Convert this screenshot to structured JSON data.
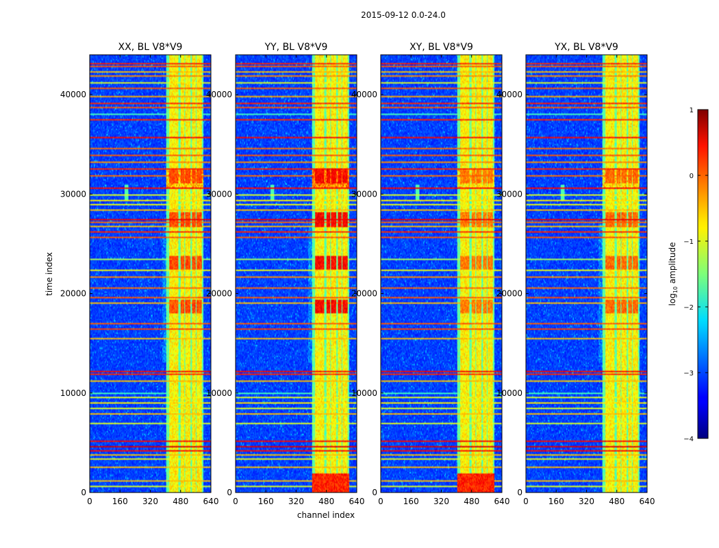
{
  "chart_data": {
    "type": "heatmap",
    "suptitle": "2015-09-12 0.0-24.0",
    "xlabel": "channel index",
    "ylabel": "time index",
    "xlim": [
      0,
      640
    ],
    "ylim": [
      0,
      44000
    ],
    "xticks": [
      0,
      160,
      320,
      480,
      640
    ],
    "yticks": [
      0,
      10000,
      20000,
      30000,
      40000
    ],
    "xtick_labels": [
      "0",
      "160",
      "320",
      "480",
      "640"
    ],
    "ytick_labels": [
      "0",
      "10000",
      "20000",
      "30000",
      "40000"
    ],
    "colormap": "jet",
    "colorbar": {
      "label": "log10 amplitude",
      "label_main": "log",
      "label_sub": "10",
      "label_tail": " amplitude",
      "range": [
        -4,
        1
      ],
      "ticks": [
        1,
        0,
        -1,
        -2,
        -3,
        -4
      ],
      "tick_labels": [
        "1",
        "0",
        "−1",
        "−2",
        "−3",
        "−4"
      ]
    },
    "panels": [
      {
        "title": "XX, BL V8*V9",
        "pol": "XX",
        "rfi_band_channels": [
          405,
          600
        ],
        "strong_level": 0.55,
        "bright_low_rows": false,
        "mid_glow": true
      },
      {
        "title": "YY, BL V8*V9",
        "pol": "YY",
        "rfi_band_channels": [
          405,
          600
        ],
        "strong_level": 0.62,
        "bright_low_rows": true,
        "mid_glow": true
      },
      {
        "title": "XY, BL V8*V9",
        "pol": "XY",
        "rfi_band_channels": [
          405,
          600
        ],
        "strong_level": 0.5,
        "bright_low_rows": true,
        "mid_glow": false
      },
      {
        "title": "YX, BL V8*V9",
        "pol": "YX",
        "rfi_band_channels": [
          405,
          600
        ],
        "strong_level": 0.52,
        "bright_low_rows": false,
        "mid_glow": true
      }
    ],
    "rfi_bright_sub_bands": [
      [
        420,
        470
      ],
      [
        480,
        500
      ],
      [
        505,
        535
      ],
      [
        540,
        560
      ],
      [
        565,
        595
      ]
    ],
    "horizontal_rfi_time_indices": [
      {
        "t": 43200,
        "level": 0.85
      },
      {
        "t": 42900,
        "level": 0.8
      },
      {
        "t": 42400,
        "level": 0.7
      },
      {
        "t": 41900,
        "level": 0.75
      },
      {
        "t": 41300,
        "level": 0.6
      },
      {
        "t": 40700,
        "level": 0.8
      },
      {
        "t": 39900,
        "level": 0.72
      },
      {
        "t": 39200,
        "level": 0.85
      },
      {
        "t": 38700,
        "level": 0.8
      },
      {
        "t": 38100,
        "level": 0.45
      },
      {
        "t": 37500,
        "level": 0.85
      },
      {
        "t": 35700,
        "level": 0.88
      },
      {
        "t": 34600,
        "level": 0.78
      },
      {
        "t": 33900,
        "level": 0.8
      },
      {
        "t": 33300,
        "level": 0.75
      },
      {
        "t": 32500,
        "level": 0.85
      },
      {
        "t": 31800,
        "level": 0.78
      },
      {
        "t": 30600,
        "level": 0.88
      },
      {
        "t": 29900,
        "level": 0.6
      },
      {
        "t": 29400,
        "level": 0.65
      },
      {
        "t": 28900,
        "level": 0.62
      },
      {
        "t": 28400,
        "level": 0.7
      },
      {
        "t": 27500,
        "level": 0.9
      },
      {
        "t": 27200,
        "level": 0.78
      },
      {
        "t": 26700,
        "level": 0.7
      },
      {
        "t": 26200,
        "level": 0.85
      },
      {
        "t": 25700,
        "level": 0.8
      },
      {
        "t": 23400,
        "level": 0.55
      },
      {
        "t": 22400,
        "level": 0.62
      },
      {
        "t": 21600,
        "level": 0.75
      },
      {
        "t": 20600,
        "level": 0.78
      },
      {
        "t": 19600,
        "level": 0.8
      },
      {
        "t": 19100,
        "level": 0.7
      },
      {
        "t": 17000,
        "level": 0.8
      },
      {
        "t": 16400,
        "level": 0.82
      },
      {
        "t": 15400,
        "level": 0.7
      },
      {
        "t": 12200,
        "level": 0.88
      },
      {
        "t": 11900,
        "level": 0.85
      },
      {
        "t": 11200,
        "level": 0.7
      },
      {
        "t": 10000,
        "level": 0.45
      },
      {
        "t": 9500,
        "level": 0.6
      },
      {
        "t": 9000,
        "level": 0.65
      },
      {
        "t": 8400,
        "level": 0.6
      },
      {
        "t": 7800,
        "level": 0.7
      },
      {
        "t": 6900,
        "level": 0.6
      },
      {
        "t": 5100,
        "level": 0.88
      },
      {
        "t": 4600,
        "level": 0.92
      },
      {
        "t": 4200,
        "level": 0.88
      },
      {
        "t": 3700,
        "level": 0.7
      },
      {
        "t": 3300,
        "level": 0.62
      },
      {
        "t": 2500,
        "level": 0.7
      },
      {
        "t": 1100,
        "level": 0.7
      },
      {
        "t": 500,
        "level": 0.6
      }
    ]
  }
}
